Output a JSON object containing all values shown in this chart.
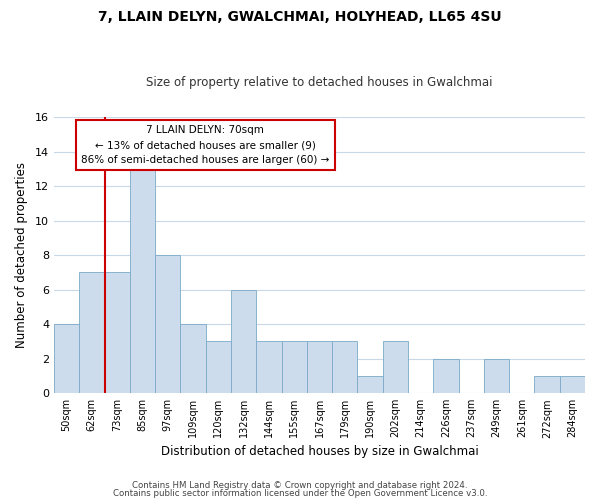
{
  "title": "7, LLAIN DELYN, GWALCHMAI, HOLYHEAD, LL65 4SU",
  "subtitle": "Size of property relative to detached houses in Gwalchmai",
  "xlabel": "Distribution of detached houses by size in Gwalchmai",
  "ylabel": "Number of detached properties",
  "bar_color": "#ccdcec",
  "bar_edge_color": "#7aaac8",
  "marker_line_color": "#cc0000",
  "bin_labels": [
    "50sqm",
    "62sqm",
    "73sqm",
    "85sqm",
    "97sqm",
    "109sqm",
    "120sqm",
    "132sqm",
    "144sqm",
    "155sqm",
    "167sqm",
    "179sqm",
    "190sqm",
    "202sqm",
    "214sqm",
    "226sqm",
    "237sqm",
    "249sqm",
    "261sqm",
    "272sqm",
    "284sqm"
  ],
  "counts": [
    4,
    7,
    7,
    13,
    8,
    4,
    3,
    6,
    3,
    3,
    3,
    3,
    1,
    3,
    0,
    2,
    0,
    2,
    0,
    1,
    1
  ],
  "marker_bin_index": 2,
  "annotation_title": "7 LLAIN DELYN: 70sqm",
  "annotation_line1": "← 13% of detached houses are smaller (9)",
  "annotation_line2": "86% of semi-detached houses are larger (60) →",
  "annotation_box_color": "#ffffff",
  "annotation_box_edge": "#cc0000",
  "ylim": [
    0,
    16
  ],
  "yticks": [
    0,
    2,
    4,
    6,
    8,
    10,
    12,
    14,
    16
  ],
  "footer1": "Contains HM Land Registry data © Crown copyright and database right 2024.",
  "footer2": "Contains public sector information licensed under the Open Government Licence v3.0.",
  "background_color": "#ffffff",
  "grid_color": "#c8d8e8"
}
